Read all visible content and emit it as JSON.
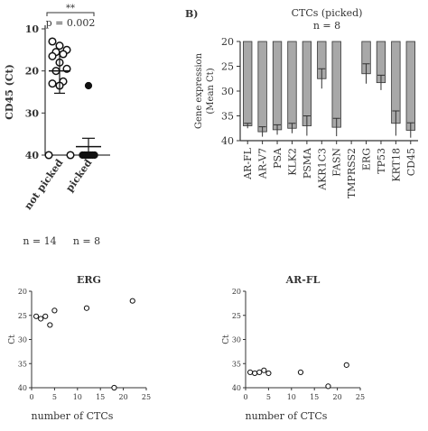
{
  "chart_data": [
    {
      "id": "A",
      "type": "scatter",
      "title": "",
      "ylabel": "CD45 (Ct)",
      "categories": [
        "not picked",
        "picked"
      ],
      "ylim": [
        10,
        40
      ],
      "y_inverted": true,
      "yticks": [
        10,
        20,
        30,
        40
      ],
      "ytick_labels": [
        "10",
        "20",
        "30",
        "40"
      ],
      "significance": "**",
      "p_value_label": "p = 0.002",
      "counts": [
        "n = 14",
        "n = 8"
      ],
      "series": [
        {
          "name": "not picked",
          "marker": "open-circle",
          "values": [
            13,
            14,
            15,
            15.5,
            16,
            16.5,
            18,
            19.5,
            20,
            22.5,
            23,
            23.5,
            40,
            40
          ],
          "mean": 20,
          "error": [
            16,
            25.3
          ]
        },
        {
          "name": "picked",
          "marker": "filled-circle",
          "values": [
            23.5,
            40,
            40,
            40,
            40,
            40,
            40,
            40
          ],
          "mean": 38,
          "error": [
            36,
            40
          ]
        }
      ]
    },
    {
      "id": "B",
      "panel_label": "B)",
      "type": "bar",
      "title": "CTCs (picked)",
      "subtitle": "n = 8",
      "ylabel_lines": [
        "Gene expression",
        "(Mean Ct)"
      ],
      "ylim": [
        20,
        40
      ],
      "y_inverted": true,
      "yticks": [
        20,
        25,
        30,
        35,
        40
      ],
      "ytick_labels": [
        "20",
        "25",
        "30",
        "35",
        "40"
      ],
      "categories": [
        "AR-FL",
        "AR-V7",
        "PSA",
        "KLK2",
        "PSMA",
        "AKR1C3",
        "FASN",
        "TMPRSS2",
        "ERG",
        "TP53",
        "KRT18",
        "CD45"
      ],
      "values": [
        37,
        38.2,
        37.8,
        37.5,
        37,
        27.5,
        37.3,
        40,
        26.5,
        28.3,
        36.5,
        37.9
      ],
      "errors": [
        0.5,
        1.0,
        1.0,
        1.0,
        2.0,
        2.0,
        1.8,
        0,
        2.0,
        1.5,
        2.5,
        1.5
      ]
    },
    {
      "id": "ERG",
      "type": "scatter",
      "title": "ERG",
      "xlabel": "number of CTCs",
      "ylabel": "Ct",
      "xlim": [
        0,
        25
      ],
      "ylim": [
        20,
        40
      ],
      "y_inverted": true,
      "xticks": [
        0,
        5,
        10,
        15,
        20,
        25
      ],
      "xtick_labels": [
        "0",
        "5",
        "10",
        "15",
        "20",
        "25"
      ],
      "yticks": [
        20,
        25,
        30,
        35,
        40
      ],
      "ytick_labels": [
        "20",
        "25",
        "30",
        "35",
        "40"
      ],
      "points": [
        {
          "x": 1,
          "y": 25.2
        },
        {
          "x": 2,
          "y": 25.7
        },
        {
          "x": 3,
          "y": 25.2
        },
        {
          "x": 4,
          "y": 27
        },
        {
          "x": 5,
          "y": 24
        },
        {
          "x": 12,
          "y": 23.5
        },
        {
          "x": 18,
          "y": 40
        },
        {
          "x": 22,
          "y": 22
        }
      ]
    },
    {
      "id": "AR-FL",
      "type": "scatter",
      "title": "AR-FL",
      "xlabel": "number of CTCs",
      "ylabel": "Ct",
      "xlim": [
        0,
        25
      ],
      "ylim": [
        20,
        40
      ],
      "y_inverted": true,
      "xticks": [
        0,
        5,
        10,
        15,
        20,
        25
      ],
      "xtick_labels": [
        "0",
        "5",
        "10",
        "15",
        "20",
        "25"
      ],
      "yticks": [
        20,
        25,
        30,
        35,
        40
      ],
      "ytick_labels": [
        "20",
        "25",
        "30",
        "35",
        "40"
      ],
      "points": [
        {
          "x": 1,
          "y": 36.8
        },
        {
          "x": 2,
          "y": 37
        },
        {
          "x": 3,
          "y": 36.8
        },
        {
          "x": 4,
          "y": 36.4
        },
        {
          "x": 5,
          "y": 37
        },
        {
          "x": 12,
          "y": 36.8
        },
        {
          "x": 18,
          "y": 39.7
        },
        {
          "x": 22,
          "y": 35.3
        }
      ]
    }
  ],
  "colors": {
    "bar_fill": "#a8a8a8",
    "axis": "#333333",
    "marker": "#111111"
  }
}
